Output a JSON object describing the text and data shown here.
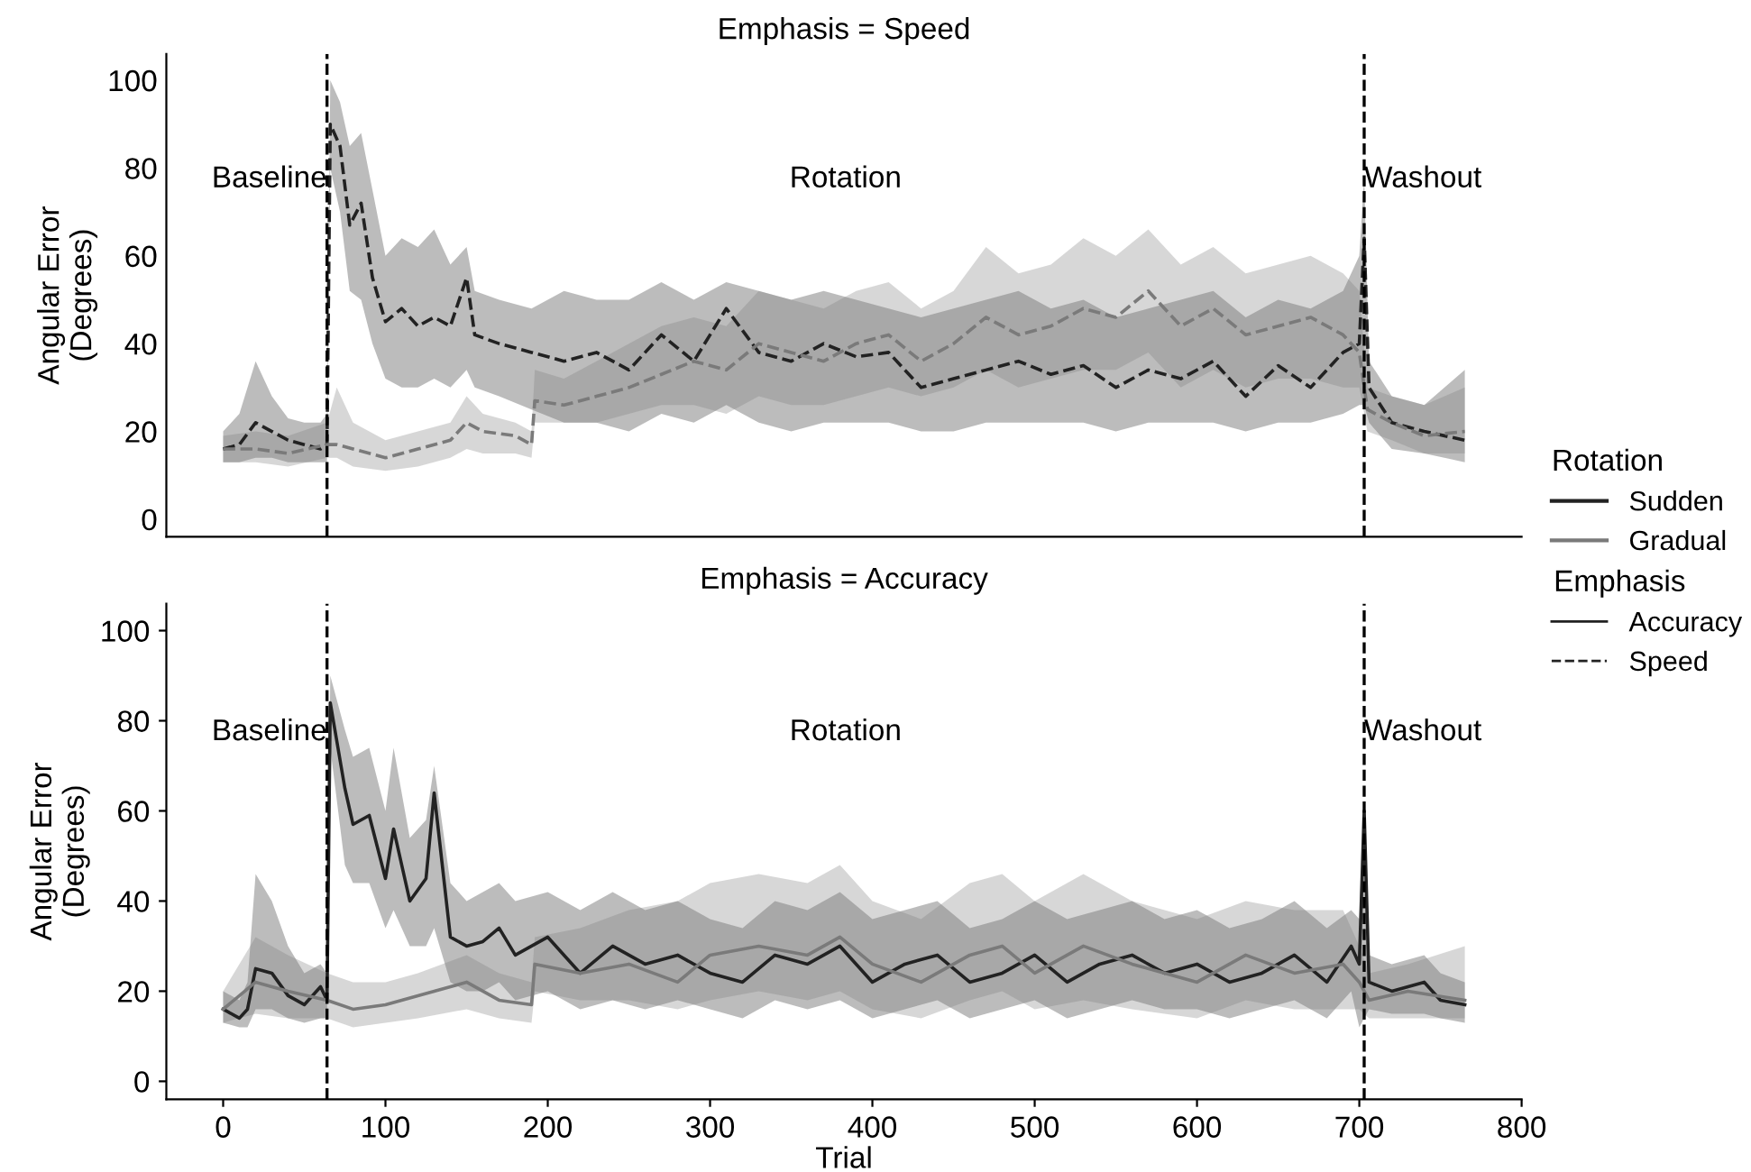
{
  "chart_data": [
    {
      "type": "line",
      "title": "Emphasis = Speed",
      "ylabel": "Angular Error\n(Degrees)",
      "xlim": [
        -35,
        800
      ],
      "ylim": [
        -4,
        106
      ],
      "xticks": [
        0,
        100,
        200,
        300,
        400,
        500,
        600,
        700,
        800
      ],
      "yticks": [
        0,
        20,
        40,
        60,
        80,
        100
      ],
      "tick_labels": "y",
      "grid": false,
      "legend": "right",
      "legend_title": "Rotation",
      "line_style": "dashed",
      "marker": "none",
      "ref_lines": [
        {
          "axis": "x",
          "value": 64,
          "color": "#000000",
          "line_style": "dashed"
        },
        {
          "axis": "x",
          "value": 703,
          "color": "#000000",
          "line_style": "dashed"
        }
      ],
      "annotations": [
        "Baseline",
        "Rotation",
        "Washout"
      ],
      "series": [
        {
          "name": "Sudden",
          "color": "#222222",
          "x": [
            0,
            10,
            20,
            30,
            40,
            50,
            60,
            64,
            66,
            72,
            78,
            85,
            92,
            100,
            110,
            120,
            130,
            140,
            150,
            155,
            170,
            190,
            210,
            230,
            250,
            270,
            290,
            310,
            330,
            350,
            370,
            390,
            410,
            430,
            450,
            470,
            490,
            510,
            530,
            550,
            570,
            590,
            610,
            630,
            650,
            670,
            690,
            700,
            703,
            706,
            720,
            740,
            765
          ],
          "values": [
            16,
            17,
            22,
            20,
            18,
            17,
            16,
            17,
            90,
            85,
            67,
            72,
            55,
            45,
            48,
            44,
            46,
            44,
            55,
            42,
            40,
            38,
            36,
            38,
            34,
            42,
            36,
            48,
            38,
            36,
            40,
            37,
            38,
            30,
            32,
            34,
            36,
            33,
            35,
            30,
            34,
            32,
            36,
            28,
            35,
            30,
            38,
            40,
            64,
            30,
            22,
            20,
            18
          ],
          "lower": [
            13,
            13,
            14,
            14,
            13,
            13,
            13,
            13,
            80,
            70,
            52,
            50,
            40,
            32,
            30,
            30,
            32,
            30,
            34,
            30,
            28,
            25,
            22,
            22,
            20,
            24,
            22,
            26,
            22,
            20,
            22,
            22,
            22,
            20,
            20,
            22,
            22,
            22,
            22,
            20,
            22,
            22,
            22,
            20,
            22,
            22,
            24,
            26,
            26,
            22,
            16,
            15,
            13
          ],
          "upper": [
            20,
            24,
            36,
            28,
            23,
            22,
            22,
            24,
            100,
            95,
            85,
            88,
            75,
            60,
            64,
            62,
            66,
            58,
            62,
            52,
            50,
            48,
            52,
            50,
            50,
            54,
            50,
            54,
            52,
            50,
            52,
            50,
            48,
            46,
            48,
            50,
            52,
            48,
            50,
            46,
            48,
            50,
            52,
            46,
            50,
            48,
            52,
            60,
            78,
            36,
            28,
            26,
            34
          ]
        },
        {
          "name": "Gradual",
          "color": "#7a7a7a",
          "x": [
            0,
            20,
            40,
            64,
            70,
            80,
            100,
            120,
            140,
            150,
            160,
            180,
            190,
            192,
            210,
            230,
            250,
            270,
            290,
            310,
            330,
            350,
            370,
            390,
            410,
            430,
            450,
            470,
            490,
            510,
            530,
            550,
            570,
            590,
            610,
            630,
            650,
            670,
            690,
            700,
            705,
            720,
            740,
            765
          ],
          "values": [
            16,
            16,
            15,
            17,
            17,
            16,
            14,
            16,
            18,
            22,
            20,
            19,
            17,
            27,
            26,
            28,
            30,
            33,
            36,
            34,
            40,
            38,
            36,
            40,
            42,
            36,
            40,
            46,
            42,
            44,
            48,
            46,
            52,
            44,
            48,
            42,
            44,
            46,
            42,
            38,
            25,
            22,
            19,
            20
          ],
          "lower": [
            13,
            13,
            12,
            14,
            14,
            12,
            11,
            12,
            14,
            16,
            15,
            15,
            14,
            22,
            22,
            22,
            24,
            26,
            26,
            24,
            28,
            26,
            26,
            28,
            30,
            28,
            30,
            34,
            30,
            32,
            34,
            34,
            38,
            30,
            34,
            30,
            32,
            32,
            30,
            30,
            20,
            18,
            15,
            15
          ],
          "upper": [
            19,
            20,
            19,
            22,
            30,
            22,
            18,
            20,
            22,
            28,
            24,
            22,
            20,
            34,
            32,
            36,
            40,
            44,
            46,
            44,
            52,
            50,
            48,
            52,
            54,
            48,
            52,
            62,
            56,
            58,
            64,
            60,
            66,
            58,
            62,
            56,
            58,
            60,
            56,
            52,
            30,
            28,
            26,
            30
          ]
        }
      ]
    },
    {
      "type": "line",
      "title": "Emphasis = Accuracy",
      "xlabel": "Trial",
      "ylabel": "Angular Error\n(Degrees)",
      "xlim": [
        -35,
        800
      ],
      "ylim": [
        -4,
        106
      ],
      "xticks": [
        0,
        100,
        200,
        300,
        400,
        500,
        600,
        700,
        800
      ],
      "yticks": [
        0,
        20,
        40,
        60,
        80,
        100
      ],
      "grid": false,
      "legend_title": "Emphasis",
      "line_style": "solid",
      "marker": "none",
      "ref_lines": [
        {
          "axis": "x",
          "value": 64,
          "color": "#000000",
          "line_style": "dashed"
        },
        {
          "axis": "x",
          "value": 703,
          "color": "#000000",
          "line_style": "dashed"
        }
      ],
      "annotations": [
        "Baseline",
        "Rotation",
        "Washout",
        "Accuracy",
        "Speed"
      ],
      "series": [
        {
          "color": "#222222",
          "x": [
            0,
            10,
            15,
            20,
            30,
            40,
            50,
            60,
            64,
            66,
            75,
            80,
            90,
            100,
            105,
            115,
            125,
            130,
            140,
            150,
            160,
            170,
            180,
            200,
            220,
            240,
            260,
            280,
            300,
            320,
            340,
            360,
            380,
            400,
            420,
            440,
            460,
            480,
            500,
            520,
            540,
            560,
            580,
            600,
            620,
            640,
            660,
            680,
            695,
            700,
            703,
            706,
            720,
            740,
            750,
            765
          ],
          "values": [
            16,
            14,
            16,
            25,
            24,
            19,
            17,
            21,
            18,
            84,
            65,
            57,
            59,
            45,
            56,
            40,
            45,
            64,
            32,
            30,
            31,
            34,
            28,
            32,
            24,
            30,
            26,
            28,
            24,
            22,
            28,
            26,
            30,
            22,
            26,
            28,
            22,
            24,
            28,
            22,
            26,
            28,
            24,
            26,
            22,
            24,
            28,
            22,
            30,
            26,
            60,
            22,
            20,
            22,
            18,
            17
          ],
          "lower": [
            13,
            12,
            12,
            16,
            16,
            14,
            13,
            14,
            14,
            74,
            48,
            44,
            44,
            34,
            38,
            30,
            30,
            34,
            22,
            20,
            20,
            22,
            18,
            20,
            16,
            18,
            16,
            18,
            16,
            14,
            18,
            16,
            18,
            14,
            16,
            18,
            14,
            16,
            18,
            14,
            16,
            18,
            16,
            16,
            14,
            16,
            18,
            14,
            20,
            12,
            14,
            16,
            15,
            15,
            14,
            13
          ],
          "upper": [
            20,
            18,
            22,
            46,
            40,
            30,
            24,
            26,
            24,
            90,
            78,
            72,
            74,
            60,
            74,
            54,
            58,
            70,
            44,
            40,
            42,
            44,
            40,
            42,
            38,
            42,
            38,
            40,
            36,
            34,
            40,
            38,
            42,
            36,
            38,
            40,
            34,
            36,
            40,
            36,
            38,
            40,
            36,
            38,
            34,
            36,
            40,
            34,
            38,
            36,
            62,
            28,
            26,
            28,
            24,
            22
          ]
        },
        {
          "color": "#7a7a7a",
          "x": [
            0,
            20,
            40,
            64,
            80,
            100,
            120,
            150,
            170,
            190,
            192,
            220,
            250,
            280,
            300,
            330,
            360,
            380,
            400,
            430,
            460,
            480,
            500,
            530,
            560,
            600,
            630,
            660,
            690,
            700,
            706,
            730,
            765
          ],
          "values": [
            16,
            22,
            20,
            18,
            16,
            17,
            19,
            22,
            18,
            17,
            26,
            24,
            26,
            22,
            28,
            30,
            28,
            32,
            26,
            22,
            28,
            30,
            24,
            30,
            26,
            22,
            28,
            24,
            26,
            22,
            18,
            20,
            18
          ],
          "lower": [
            13,
            15,
            14,
            14,
            12,
            13,
            14,
            16,
            14,
            13,
            20,
            18,
            18,
            16,
            18,
            20,
            18,
            20,
            16,
            14,
            18,
            20,
            16,
            18,
            16,
            14,
            18,
            16,
            16,
            16,
            14,
            14,
            14
          ],
          "upper": [
            20,
            32,
            28,
            24,
            22,
            22,
            24,
            28,
            24,
            22,
            32,
            34,
            38,
            40,
            44,
            46,
            44,
            48,
            40,
            36,
            44,
            46,
            40,
            46,
            40,
            36,
            40,
            38,
            38,
            30,
            24,
            26,
            30
          ]
        }
      ]
    }
  ]
}
